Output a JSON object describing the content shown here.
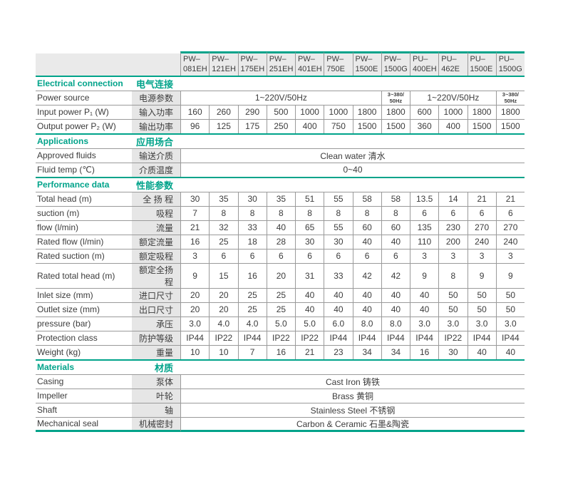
{
  "table": {
    "colors": {
      "accent": "#00a38a",
      "header_bg": "#eaeaea",
      "label_bg": "#e6e6e6",
      "border": "#9a9a9a",
      "text": "#3c3c3c"
    },
    "columns": [
      {
        "series": "PW–",
        "code": "081EH"
      },
      {
        "series": "PW–",
        "code": "121EH"
      },
      {
        "series": "PW–",
        "code": "175EH"
      },
      {
        "series": "PW–",
        "code": "251EH"
      },
      {
        "series": "PW–",
        "code": "401EH"
      },
      {
        "series": "PW–",
        "code": "750E"
      },
      {
        "series": "PW–",
        "code": "1500E"
      },
      {
        "series": "PW–",
        "code": "1500G"
      },
      {
        "series": "PU–",
        "code": "400EH"
      },
      {
        "series": "PU–",
        "code": "462E"
      },
      {
        "series": "PU–",
        "code": "1500E"
      },
      {
        "series": "PU–",
        "code": "1500G"
      }
    ],
    "sections": [
      {
        "title_en": "Electrical connection",
        "title_zh": "电气连接",
        "rows": [
          {
            "en": "Power source",
            "zh": "电源参数",
            "cells": [
              {
                "text": "1~220V/50Hz",
                "span": 7
              },
              {
                "lines": [
                  "3~380/",
                  "50Hz"
                ],
                "span": 1
              },
              {
                "text": "1~220V/50Hz",
                "span": 3
              },
              {
                "lines": [
                  "3~380/",
                  "50Hz"
                ],
                "span": 1
              }
            ]
          },
          {
            "en": "Input power P₁ (W)",
            "zh": "输入功率",
            "values": [
              "160",
              "260",
              "290",
              "500",
              "1000",
              "1000",
              "1800",
              "1800",
              "600",
              "1000",
              "1800",
              "1800"
            ]
          },
          {
            "en": "Output power P₂ (W)",
            "zh": "输出功率",
            "values": [
              "96",
              "125",
              "175",
              "250",
              "400",
              "750",
              "1500",
              "1500",
              "360",
              "400",
              "1500",
              "1500"
            ]
          }
        ]
      },
      {
        "title_en": "Applications",
        "title_zh": "应用场合",
        "rows": [
          {
            "en": "Approved fluids",
            "zh": "输送介质",
            "cells": [
              {
                "text": "Clean water 清水",
                "span": 12
              }
            ]
          },
          {
            "en": "Fluid temp (℃)",
            "zh": "介质温度",
            "cells": [
              {
                "text": "0~40",
                "span": 12
              }
            ]
          }
        ]
      },
      {
        "title_en": "Performance data",
        "title_zh": "性能参数",
        "rows": [
          {
            "en": "Total head (m)",
            "zh": "全 扬 程",
            "values": [
              "30",
              "35",
              "30",
              "35",
              "51",
              "55",
              "58",
              "58",
              "13.5",
              "14",
              "21",
              "21"
            ]
          },
          {
            "en": "suction (m)",
            "zh": "吸程",
            "values": [
              "7",
              "8",
              "8",
              "8",
              "8",
              "8",
              "8",
              "8",
              "6",
              "6",
              "6",
              "6"
            ]
          },
          {
            "en": "flow (l/min)",
            "zh": "流量",
            "values": [
              "21",
              "32",
              "33",
              "40",
              "65",
              "55",
              "60",
              "60",
              "135",
              "230",
              "270",
              "270"
            ]
          },
          {
            "en": "Rated flow (l/min)",
            "zh": "额定流量",
            "values": [
              "16",
              "25",
              "18",
              "28",
              "30",
              "30",
              "40",
              "40",
              "110",
              "200",
              "240",
              "240"
            ]
          },
          {
            "en": "Rated suction (m)",
            "zh": "额定吸程",
            "values": [
              "3",
              "6",
              "6",
              "6",
              "6",
              "6",
              "6",
              "6",
              "3",
              "3",
              "3",
              "3"
            ]
          },
          {
            "en": "Rated total head (m)",
            "zh": "额定全扬程",
            "values": [
              "9",
              "15",
              "16",
              "20",
              "31",
              "33",
              "42",
              "42",
              "9",
              "8",
              "9",
              "9"
            ]
          },
          {
            "en": "Inlet size (mm)",
            "zh": "进口尺寸",
            "values": [
              "20",
              "20",
              "25",
              "25",
              "40",
              "40",
              "40",
              "40",
              "40",
              "50",
              "50",
              "50"
            ]
          },
          {
            "en": "Outlet size (mm)",
            "zh": "出口尺寸",
            "values": [
              "20",
              "20",
              "25",
              "25",
              "40",
              "40",
              "40",
              "40",
              "40",
              "50",
              "50",
              "50"
            ]
          },
          {
            "en": "pressure (bar)",
            "zh": "承压",
            "values": [
              "3.0",
              "4.0",
              "4.0",
              "5.0",
              "5.0",
              "6.0",
              "8.0",
              "8.0",
              "3.0",
              "3.0",
              "3.0",
              "3.0"
            ]
          },
          {
            "en": "Protection class",
            "zh": "防护等级",
            "values": [
              "IP44",
              "IP22",
              "IP44",
              "IP22",
              "IP22",
              "IP44",
              "IP44",
              "IP44",
              "IP44",
              "IP22",
              "IP44",
              "IP44"
            ]
          },
          {
            "en": "Weight (kg)",
            "zh": "重量",
            "values": [
              "10",
              "10",
              "7",
              "16",
              "21",
              "23",
              "34",
              "34",
              "16",
              "30",
              "40",
              "40"
            ]
          }
        ]
      },
      {
        "title_en": "Materials",
        "title_zh": "材质",
        "rows": [
          {
            "en": "Casing",
            "zh": "泵体",
            "cells": [
              {
                "text": "Cast Iron 铸铁",
                "span": 12
              }
            ]
          },
          {
            "en": "Impeller",
            "zh": "叶轮",
            "cells": [
              {
                "text": "Brass 黄铜",
                "span": 12
              }
            ]
          },
          {
            "en": "Shaft",
            "zh": "轴",
            "cells": [
              {
                "text": "Stainless Steel 不锈钢",
                "span": 12
              }
            ]
          },
          {
            "en": "Mechanical seal",
            "zh": "机械密封",
            "cells": [
              {
                "text": "Carbon & Ceramic 石墨&陶瓷",
                "span": 12
              }
            ]
          }
        ]
      }
    ]
  }
}
